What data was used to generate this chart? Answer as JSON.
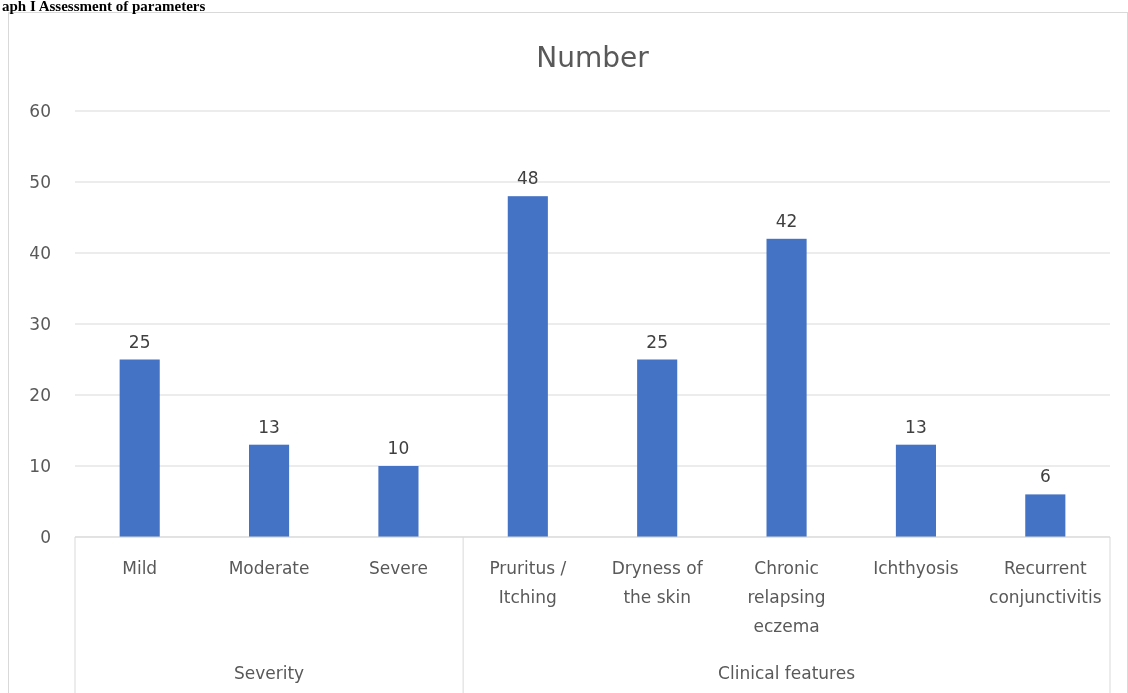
{
  "chart_data": {
    "type": "bar",
    "title": "Number",
    "categories": [
      "Mild",
      "Moderate",
      "Severe",
      "Pruritus / Itching",
      "Dryness of the skin",
      "Chronic relapsing eczema",
      "Ichthyosis",
      "Recurrent conjunctivitis"
    ],
    "values": [
      25,
      13,
      10,
      48,
      25,
      42,
      13,
      6
    ],
    "color": "#4472c4",
    "ylim": [
      0,
      60
    ],
    "yticks": [
      0,
      10,
      20,
      30,
      40,
      50,
      60
    ],
    "grid": "y",
    "data_labels": true,
    "annotations": [
      "aph I Assessment of parameters",
      "Severity",
      "Clinical features"
    ]
  }
}
